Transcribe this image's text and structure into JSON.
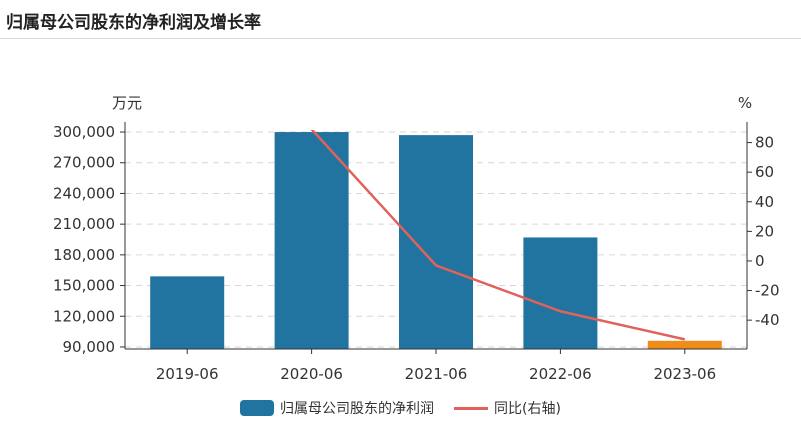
{
  "header": {
    "title": "归属母公司股东的净利润及增长率"
  },
  "chart_data": {
    "type": "bar+line",
    "categories": [
      "2019-06",
      "2020-06",
      "2021-06",
      "2022-06",
      "2023-06"
    ],
    "series": [
      {
        "name": "归属母公司股东的净利润",
        "type": "bar",
        "axis": "left",
        "values": [
          159000,
          300000,
          297000,
          197000,
          96000
        ],
        "colors": [
          "#2274a0",
          "#2274a0",
          "#2274a0",
          "#2274a0",
          "#f28c19"
        ]
      },
      {
        "name": "同比(右轴)",
        "type": "line",
        "axis": "right",
        "values": [
          null,
          89,
          -3,
          -34,
          -53
        ],
        "color": "#e0625a"
      }
    ],
    "left_axis": {
      "unit": "万元",
      "ticks": [
        "90,000",
        "120,000",
        "150,000",
        "180,000",
        "210,000",
        "240,000",
        "270,000",
        "300,000"
      ],
      "tick_values": [
        90000,
        120000,
        150000,
        180000,
        210000,
        240000,
        270000,
        300000
      ],
      "range": [
        88000,
        302000
      ]
    },
    "right_axis": {
      "unit": "%",
      "ticks": [
        "-40",
        "-20",
        "0",
        "20",
        "40",
        "60",
        "80"
      ],
      "tick_values": [
        -40,
        -20,
        0,
        20,
        40,
        60,
        80
      ],
      "range": [
        -59.5,
        88.5
      ]
    },
    "grid": true,
    "legend": "bottom-center"
  },
  "legend": {
    "bar_label": "归属母公司股东的净利润",
    "line_label": "同比(右轴)",
    "bar_color": "#2274a0",
    "line_color": "#e0625a"
  }
}
